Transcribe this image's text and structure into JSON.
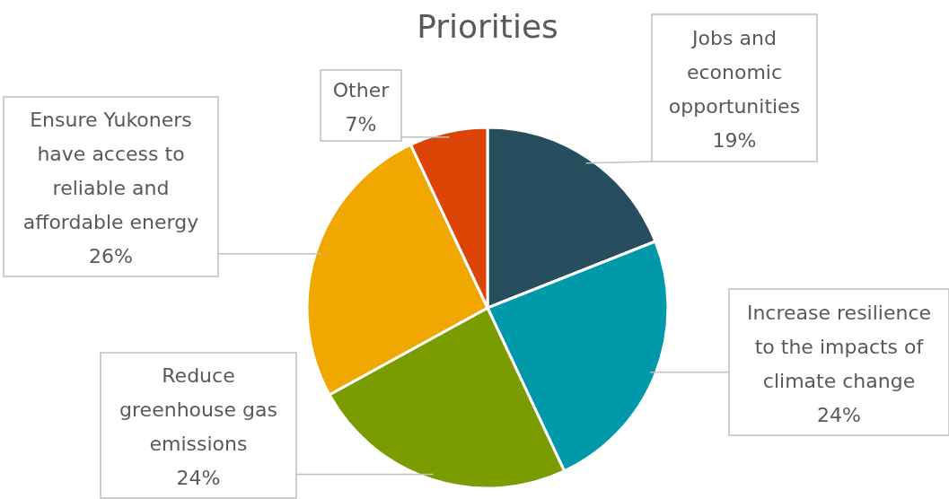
{
  "chart_data": {
    "type": "pie",
    "title": "Priorities",
    "categories": [
      "Jobs and economic opportunities",
      "Increase resilience to the impacts of climate change",
      "Reduce greenhouse gas emissions",
      "Ensure Yukoners have access to reliable and affordable energy",
      "Other"
    ],
    "values": [
      19,
      24,
      24,
      26,
      7
    ],
    "colors": [
      "#264e5e",
      "#0099a9",
      "#7a9c00",
      "#f0a800",
      "#dc4405"
    ],
    "value_labels": [
      "19%",
      "24%",
      "24%",
      "26%",
      "7%"
    ]
  }
}
